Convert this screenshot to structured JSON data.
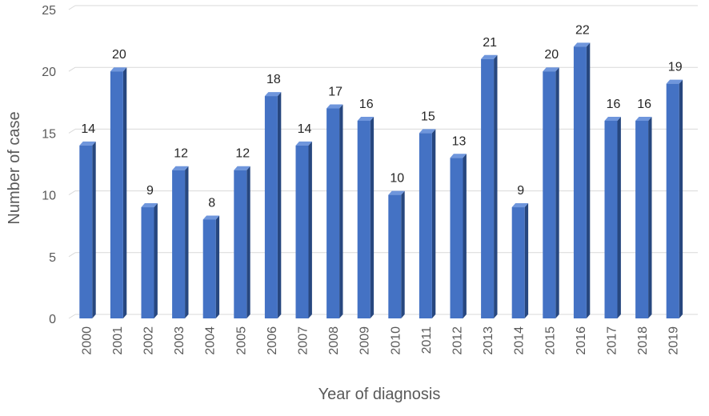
{
  "chart_data": {
    "type": "bar",
    "title": "",
    "xlabel": "Year of diagnosis",
    "ylabel": "Number of case",
    "ylim": [
      0,
      25
    ],
    "yticks": [
      0,
      5,
      10,
      15,
      20,
      25
    ],
    "grid": true,
    "bar_style": "3d",
    "colors": {
      "bar_front": "#4472C4",
      "bar_side": "#27477F",
      "bar_top": "#6F96DC",
      "grid": "#D9D9D9"
    },
    "categories": [
      "2000",
      "2001",
      "2002",
      "2003",
      "2004",
      "2005",
      "2006",
      "2007",
      "2008",
      "2009",
      "2010",
      "2011",
      "2012",
      "2013",
      "2014",
      "2015",
      "2016",
      "2017",
      "2018",
      "2019"
    ],
    "values": [
      14,
      20,
      9,
      12,
      8,
      12,
      18,
      14,
      17,
      16,
      10,
      15,
      13,
      21,
      9,
      20,
      22,
      16,
      16,
      19
    ]
  }
}
